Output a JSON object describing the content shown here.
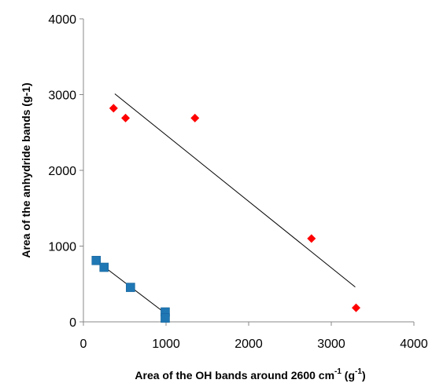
{
  "chart_data": {
    "type": "scatter",
    "title": "",
    "xlabel": {
      "main": "Area of the OH bands around  2600 cm",
      "sup1": "-1",
      "mid": " (g",
      "sup2": "-1",
      "end": ")"
    },
    "ylabel": "Area of the anhydride bands (g-1)",
    "xlim": [
      0,
      4000
    ],
    "ylim": [
      0,
      4000
    ],
    "xticks": [
      "0",
      "1000",
      "2000",
      "3000",
      "4000"
    ],
    "yticks": [
      "0",
      "1000",
      "2000",
      "3000",
      "4000"
    ],
    "grid": false,
    "legend": "none",
    "series": [
      {
        "marker": "diamond",
        "color": "#ff0000",
        "points": [
          {
            "x": 365,
            "y": 2820
          },
          {
            "x": 510,
            "y": 2690
          },
          {
            "x": 1350,
            "y": 2690
          },
          {
            "x": 2760,
            "y": 1100
          },
          {
            "x": 3300,
            "y": 185
          }
        ],
        "trendline": {
          "x": [
            380,
            3290
          ],
          "y": [
            3010,
            460
          ]
        }
      },
      {
        "marker": "square",
        "color": "#1f77b4",
        "points": [
          {
            "x": 155,
            "y": 810
          },
          {
            "x": 250,
            "y": 720
          },
          {
            "x": 570,
            "y": 455
          },
          {
            "x": 990,
            "y": 130
          },
          {
            "x": 990,
            "y": 50
          }
        ],
        "trendline": {
          "x": [
            175,
            995
          ],
          "y": [
            790,
            110
          ]
        }
      }
    ]
  }
}
